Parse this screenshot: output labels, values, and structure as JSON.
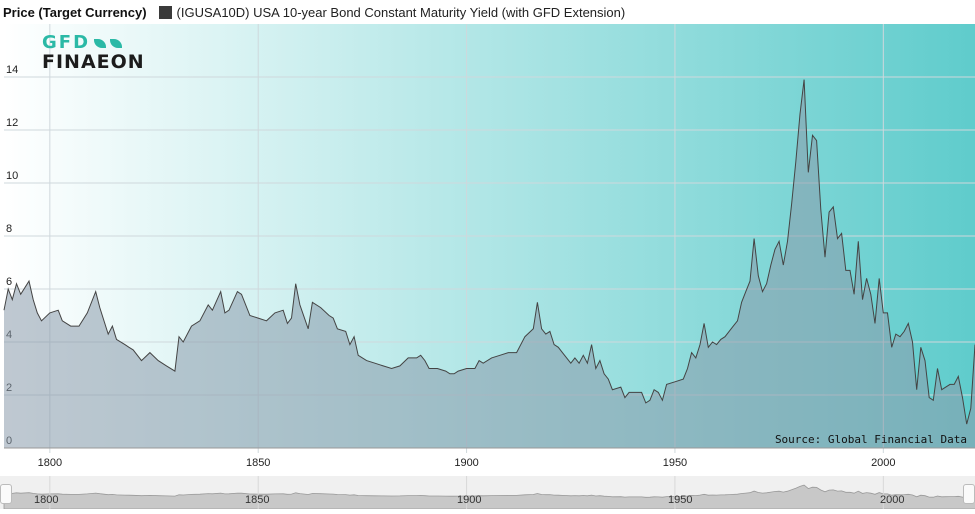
{
  "header": {
    "title": "Price (Target Currency)",
    "legend_label": "(IGUSA10D) USA 10-year Bond Constant Maturity Yield (with GFD Extension)",
    "legend_color": "#3a3a3a"
  },
  "logo": {
    "line1": "GFD",
    "line2": "FINAEON"
  },
  "source": "Source: Global Financial Data",
  "navigator": {
    "labels": [
      "1800",
      "1850",
      "1900",
      "1950",
      "2000"
    ]
  },
  "colors": {
    "gradient_left": "#ffffff",
    "gradient_right": "#5fcccc",
    "line": "#444444",
    "fill": "#8a9aab"
  },
  "chart_data": {
    "type": "area",
    "title": "",
    "xlabel": "",
    "ylabel": "",
    "xlim": [
      1789,
      2022
    ],
    "ylim": [
      0,
      16
    ],
    "x_ticks": [
      1800,
      1850,
      1900,
      1950,
      2000
    ],
    "y_ticks": [
      0,
      2,
      4,
      6,
      8,
      10,
      12,
      14
    ],
    "grid": true,
    "series": [
      {
        "values": [
          [
            1789,
            5.2
          ],
          [
            1790,
            6.0
          ],
          [
            1791,
            5.6
          ],
          [
            1792,
            6.2
          ],
          [
            1793,
            5.8
          ],
          [
            1795,
            6.3
          ],
          [
            1796,
            5.6
          ],
          [
            1797,
            5.1
          ],
          [
            1798,
            4.8
          ],
          [
            1800,
            5.1
          ],
          [
            1802,
            5.2
          ],
          [
            1803,
            4.8
          ],
          [
            1805,
            4.6
          ],
          [
            1807,
            4.6
          ],
          [
            1809,
            5.1
          ],
          [
            1811,
            5.9
          ],
          [
            1812,
            5.3
          ],
          [
            1814,
            4.3
          ],
          [
            1815,
            4.6
          ],
          [
            1816,
            4.1
          ],
          [
            1818,
            3.9
          ],
          [
            1819,
            3.8
          ],
          [
            1820,
            3.7
          ],
          [
            1822,
            3.3
          ],
          [
            1824,
            3.6
          ],
          [
            1826,
            3.3
          ],
          [
            1828,
            3.1
          ],
          [
            1830,
            2.9
          ],
          [
            1831,
            4.2
          ],
          [
            1832,
            4.0
          ],
          [
            1834,
            4.6
          ],
          [
            1836,
            4.8
          ],
          [
            1838,
            5.4
          ],
          [
            1839,
            5.2
          ],
          [
            1841,
            5.9
          ],
          [
            1842,
            5.1
          ],
          [
            1843,
            5.2
          ],
          [
            1845,
            5.9
          ],
          [
            1846,
            5.8
          ],
          [
            1848,
            5.0
          ],
          [
            1850,
            4.9
          ],
          [
            1852,
            4.8
          ],
          [
            1854,
            5.1
          ],
          [
            1856,
            5.2
          ],
          [
            1857,
            4.7
          ],
          [
            1858,
            4.9
          ],
          [
            1859,
            6.2
          ],
          [
            1860,
            5.4
          ],
          [
            1862,
            4.5
          ],
          [
            1863,
            5.5
          ],
          [
            1865,
            5.3
          ],
          [
            1867,
            5.0
          ],
          [
            1868,
            4.9
          ],
          [
            1869,
            4.5
          ],
          [
            1871,
            4.4
          ],
          [
            1872,
            3.9
          ],
          [
            1873,
            4.2
          ],
          [
            1874,
            3.5
          ],
          [
            1876,
            3.3
          ],
          [
            1878,
            3.2
          ],
          [
            1880,
            3.1
          ],
          [
            1882,
            3.0
          ],
          [
            1884,
            3.1
          ],
          [
            1886,
            3.4
          ],
          [
            1888,
            3.4
          ],
          [
            1889,
            3.5
          ],
          [
            1890,
            3.3
          ],
          [
            1891,
            3.0
          ],
          [
            1893,
            3.0
          ],
          [
            1895,
            2.9
          ],
          [
            1896,
            2.8
          ],
          [
            1897,
            2.8
          ],
          [
            1898,
            2.9
          ],
          [
            1900,
            3.0
          ],
          [
            1902,
            3.0
          ],
          [
            1903,
            3.3
          ],
          [
            1904,
            3.2
          ],
          [
            1906,
            3.4
          ],
          [
            1908,
            3.5
          ],
          [
            1910,
            3.6
          ],
          [
            1912,
            3.6
          ],
          [
            1914,
            4.2
          ],
          [
            1916,
            4.5
          ],
          [
            1917,
            5.5
          ],
          [
            1918,
            4.5
          ],
          [
            1919,
            4.3
          ],
          [
            1920,
            4.4
          ],
          [
            1921,
            3.9
          ],
          [
            1922,
            3.8
          ],
          [
            1923,
            3.6
          ],
          [
            1925,
            3.2
          ],
          [
            1926,
            3.4
          ],
          [
            1927,
            3.2
          ],
          [
            1928,
            3.5
          ],
          [
            1929,
            3.2
          ],
          [
            1930,
            3.9
          ],
          [
            1931,
            3.0
          ],
          [
            1932,
            3.3
          ],
          [
            1933,
            2.8
          ],
          [
            1934,
            2.6
          ],
          [
            1935,
            2.2
          ],
          [
            1937,
            2.3
          ],
          [
            1938,
            1.9
          ],
          [
            1939,
            2.1
          ],
          [
            1940,
            2.1
          ],
          [
            1942,
            2.1
          ],
          [
            1943,
            1.7
          ],
          [
            1944,
            1.8
          ],
          [
            1945,
            2.2
          ],
          [
            1946,
            2.1
          ],
          [
            1947,
            1.8
          ],
          [
            1948,
            2.4
          ],
          [
            1950,
            2.5
          ],
          [
            1952,
            2.6
          ],
          [
            1953,
            3.0
          ],
          [
            1954,
            3.6
          ],
          [
            1955,
            3.4
          ],
          [
            1956,
            3.9
          ],
          [
            1957,
            4.7
          ],
          [
            1958,
            3.8
          ],
          [
            1959,
            4.0
          ],
          [
            1960,
            3.9
          ],
          [
            1961,
            4.1
          ],
          [
            1962,
            4.2
          ],
          [
            1963,
            4.4
          ],
          [
            1964,
            4.6
          ],
          [
            1965,
            4.8
          ],
          [
            1966,
            5.5
          ],
          [
            1967,
            5.9
          ],
          [
            1968,
            6.3
          ],
          [
            1969,
            7.9
          ],
          [
            1970,
            6.5
          ],
          [
            1971,
            5.9
          ],
          [
            1972,
            6.2
          ],
          [
            1973,
            6.9
          ],
          [
            1974,
            7.5
          ],
          [
            1975,
            7.8
          ],
          [
            1976,
            6.9
          ],
          [
            1977,
            7.8
          ],
          [
            1978,
            9.2
          ],
          [
            1979,
            10.8
          ],
          [
            1980,
            12.6
          ],
          [
            1981,
            13.9
          ],
          [
            1982,
            10.4
          ],
          [
            1983,
            11.8
          ],
          [
            1984,
            11.6
          ],
          [
            1985,
            9.0
          ],
          [
            1986,
            7.2
          ],
          [
            1987,
            8.9
          ],
          [
            1988,
            9.1
          ],
          [
            1989,
            7.9
          ],
          [
            1990,
            8.1
          ],
          [
            1991,
            6.7
          ],
          [
            1992,
            6.7
          ],
          [
            1993,
            5.8
          ],
          [
            1994,
            7.8
          ],
          [
            1995,
            5.6
          ],
          [
            1996,
            6.4
          ],
          [
            1997,
            5.8
          ],
          [
            1998,
            4.7
          ],
          [
            1999,
            6.4
          ],
          [
            2000,
            5.1
          ],
          [
            2001,
            5.1
          ],
          [
            2002,
            3.8
          ],
          [
            2003,
            4.3
          ],
          [
            2004,
            4.2
          ],
          [
            2005,
            4.4
          ],
          [
            2006,
            4.7
          ],
          [
            2007,
            4.0
          ],
          [
            2008,
            2.2
          ],
          [
            2009,
            3.8
          ],
          [
            2010,
            3.3
          ],
          [
            2011,
            1.9
          ],
          [
            2012,
            1.8
          ],
          [
            2013,
            3.0
          ],
          [
            2014,
            2.2
          ],
          [
            2015,
            2.3
          ],
          [
            2016,
            2.4
          ],
          [
            2017,
            2.4
          ],
          [
            2018,
            2.7
          ],
          [
            2019,
            1.9
          ],
          [
            2020,
            0.9
          ],
          [
            2021,
            1.5
          ],
          [
            2022,
            3.9
          ],
          [
            2022.5,
            3.3
          ]
        ]
      }
    ]
  }
}
